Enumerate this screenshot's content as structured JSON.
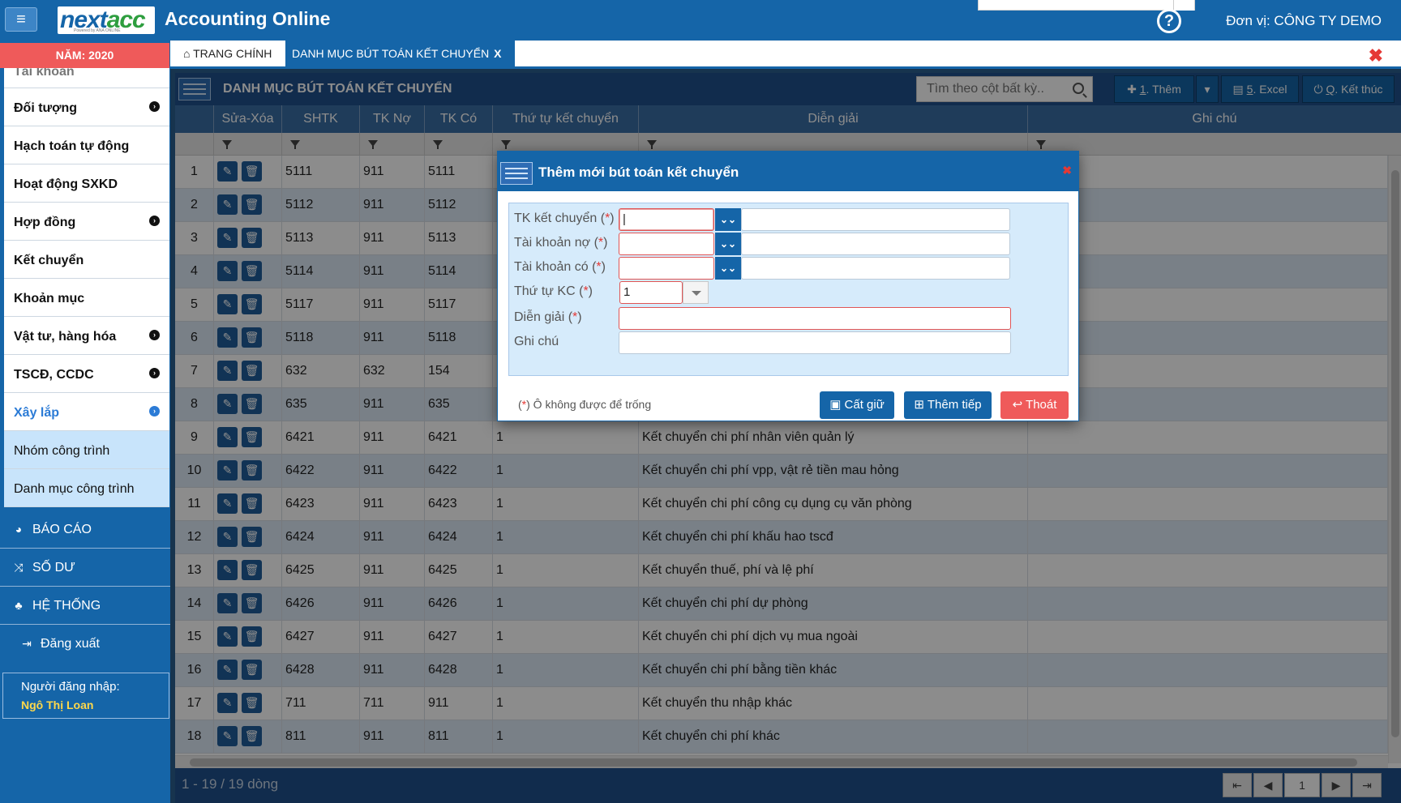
{
  "app": {
    "title": "Accounting Online",
    "logo_text_1": "next",
    "logo_text_2": "acc",
    "logo_sub": "Powered by ANA ONLINE",
    "unit_label": "Đơn vị: CÔNG TY DEMO",
    "help_symbol": "?"
  },
  "sidebar": {
    "year": "NĂM: 2020",
    "cut_item": "Tài khoản",
    "items": [
      {
        "label": "Đối tượng",
        "arrow": true
      },
      {
        "label": "Hạch toán tự động",
        "arrow": false
      },
      {
        "label": "Hoạt động SXKD",
        "arrow": false
      },
      {
        "label": "Hợp đồng",
        "arrow": true
      },
      {
        "label": "Kết chuyển",
        "arrow": false
      },
      {
        "label": "Khoản mục",
        "arrow": false
      },
      {
        "label": "Vật tư, hàng hóa",
        "arrow": true
      },
      {
        "label": "TSCĐ, CCDC",
        "arrow": true
      },
      {
        "label": "Xây lắp",
        "arrow": true,
        "active": true
      },
      {
        "label": "Nhóm công trình",
        "light": true
      },
      {
        "label": "Danh mục công trình",
        "light": true
      }
    ],
    "nav": [
      {
        "label": "BÁO CÁO",
        "icon": "pie-chart-icon"
      },
      {
        "label": "SỐ DƯ",
        "icon": "shuffle-icon"
      },
      {
        "label": "HỆ THỐNG",
        "icon": "sitemap-icon"
      }
    ],
    "logout": "Đăng xuất",
    "user_label": "Người đăng nhập:",
    "user_name": "Ngô Thị Loan"
  },
  "tabs": {
    "home": "TRANG CHÍNH",
    "current": "DANH MỤC BÚT TOÁN KẾT CHUYỂN",
    "current_close": "X"
  },
  "toolbar": {
    "title": "DANH MỤC BÚT TOÁN KẾT CHUYỂN",
    "search_placeholder": "Tìm theo cột bất kỳ..",
    "add_key": "1",
    "add_label": ". Thêm",
    "excel_key": "5",
    "excel_label": ". Excel",
    "end_key": "Q",
    "end_label": ". Kết thúc"
  },
  "grid": {
    "columns": [
      "Sửa-Xóa",
      "SHTK",
      "TK Nợ",
      "TK Có",
      "Thứ tự kết chuyển",
      "Diễn giải",
      "Ghi chú"
    ],
    "rows": [
      {
        "stt": "1",
        "shtk": "5111",
        "no": "911",
        "co": "5111",
        "tt": "",
        "dg": ""
      },
      {
        "stt": "2",
        "shtk": "5112",
        "no": "911",
        "co": "5112",
        "tt": "",
        "dg": ""
      },
      {
        "stt": "3",
        "shtk": "5113",
        "no": "911",
        "co": "5113",
        "tt": "",
        "dg": ""
      },
      {
        "stt": "4",
        "shtk": "5114",
        "no": "911",
        "co": "5114",
        "tt": "",
        "dg": ""
      },
      {
        "stt": "5",
        "shtk": "5117",
        "no": "911",
        "co": "5117",
        "tt": "",
        "dg": ""
      },
      {
        "stt": "6",
        "shtk": "5118",
        "no": "911",
        "co": "5118",
        "tt": "",
        "dg": ""
      },
      {
        "stt": "7",
        "shtk": "632",
        "no": "632",
        "co": "154",
        "tt": "",
        "dg": ""
      },
      {
        "stt": "8",
        "shtk": "635",
        "no": "911",
        "co": "635",
        "tt": "",
        "dg": ""
      },
      {
        "stt": "9",
        "shtk": "6421",
        "no": "911",
        "co": "6421",
        "tt": "1",
        "dg": "Kết chuyển chi phí nhân viên quản lý"
      },
      {
        "stt": "10",
        "shtk": "6422",
        "no": "911",
        "co": "6422",
        "tt": "1",
        "dg": "Kết chuyển chi phí vpp, vật rẻ tiền mau hỏng"
      },
      {
        "stt": "11",
        "shtk": "6423",
        "no": "911",
        "co": "6423",
        "tt": "1",
        "dg": "Kết chuyển chi phí công cụ dụng cụ văn phòng"
      },
      {
        "stt": "12",
        "shtk": "6424",
        "no": "911",
        "co": "6424",
        "tt": "1",
        "dg": "Kết chuyển chi phí khấu hao tscđ"
      },
      {
        "stt": "13",
        "shtk": "6425",
        "no": "911",
        "co": "6425",
        "tt": "1",
        "dg": "Kết chuyển thuế, phí và lệ phí"
      },
      {
        "stt": "14",
        "shtk": "6426",
        "no": "911",
        "co": "6426",
        "tt": "1",
        "dg": "Kết chuyển chi phí dự phòng"
      },
      {
        "stt": "15",
        "shtk": "6427",
        "no": "911",
        "co": "6427",
        "tt": "1",
        "dg": "Kết chuyển chi phí dịch vụ mua ngoài"
      },
      {
        "stt": "16",
        "shtk": "6428",
        "no": "911",
        "co": "6428",
        "tt": "1",
        "dg": "Kết chuyển chi phí bằng tiền khác"
      },
      {
        "stt": "17",
        "shtk": "711",
        "no": "711",
        "co": "911",
        "tt": "1",
        "dg": "Kết chuyển thu nhập khác"
      },
      {
        "stt": "18",
        "shtk": "811",
        "no": "911",
        "co": "811",
        "tt": "1",
        "dg": "Kết chuyển chi phí khác"
      }
    ],
    "footer": "1 - 19 / 19 dòng",
    "page": "1"
  },
  "modal": {
    "title": "Thêm mới bút toán kết chuyển",
    "close": "×",
    "fields": {
      "tk_kc": "TK kết chuyển",
      "tk_no": "Tài khoản nợ",
      "tk_co": "Tài khoản có",
      "thu_tu": "Thứ tự KC",
      "dien_giai": "Diễn giải",
      "ghi_chu": "Ghi chú"
    },
    "req_open": "(",
    "req_star": "*",
    "req_close": ")",
    "thu_tu_value": "1",
    "note_rest": " Ô không được để trống",
    "save": "Cất giữ",
    "add_more": "Thêm tiếp",
    "exit": "Thoát"
  }
}
